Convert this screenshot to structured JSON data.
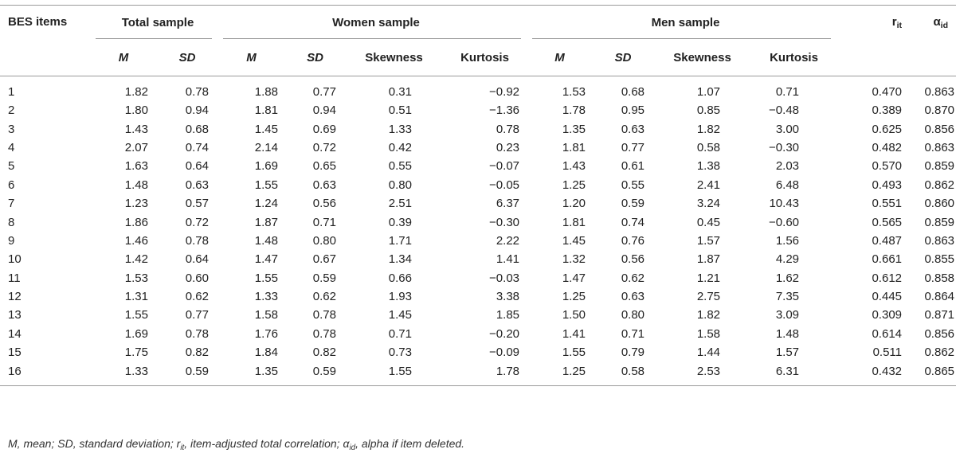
{
  "header": {
    "items_label": "BES items",
    "groups": {
      "total": "Total sample",
      "women": "Women sample",
      "men": "Men sample"
    },
    "rit_main": "r",
    "rit_sub": "it",
    "alpha_main": "α",
    "alpha_sub": "id",
    "sub": {
      "m": "M",
      "sd": "SD",
      "skewness": "Skewness",
      "kurtosis": "Kurtosis"
    }
  },
  "rows": [
    [
      "1",
      "1.82",
      "0.78",
      "1.88",
      "0.77",
      "0.31",
      "−0.92",
      "1.53",
      "0.68",
      "1.07",
      "0.71",
      "0.470",
      "0.863"
    ],
    [
      "2",
      "1.80",
      "0.94",
      "1.81",
      "0.94",
      "0.51",
      "−1.36",
      "1.78",
      "0.95",
      "0.85",
      "−0.48",
      "0.389",
      "0.870"
    ],
    [
      "3",
      "1.43",
      "0.68",
      "1.45",
      "0.69",
      "1.33",
      "0.78",
      "1.35",
      "0.63",
      "1.82",
      "3.00",
      "0.625",
      "0.856"
    ],
    [
      "4",
      "2.07",
      "0.74",
      "2.14",
      "0.72",
      "0.42",
      "0.23",
      "1.81",
      "0.77",
      "0.58",
      "−0.30",
      "0.482",
      "0.863"
    ],
    [
      "5",
      "1.63",
      "0.64",
      "1.69",
      "0.65",
      "0.55",
      "−0.07",
      "1.43",
      "0.61",
      "1.38",
      "2.03",
      "0.570",
      "0.859"
    ],
    [
      "6",
      "1.48",
      "0.63",
      "1.55",
      "0.63",
      "0.80",
      "−0.05",
      "1.25",
      "0.55",
      "2.41",
      "6.48",
      "0.493",
      "0.862"
    ],
    [
      "7",
      "1.23",
      "0.57",
      "1.24",
      "0.56",
      "2.51",
      "6.37",
      "1.20",
      "0.59",
      "3.24",
      "10.43",
      "0.551",
      "0.860"
    ],
    [
      "8",
      "1.86",
      "0.72",
      "1.87",
      "0.71",
      "0.39",
      "−0.30",
      "1.81",
      "0.74",
      "0.45",
      "−0.60",
      "0.565",
      "0.859"
    ],
    [
      "9",
      "1.46",
      "0.78",
      "1.48",
      "0.80",
      "1.71",
      "2.22",
      "1.45",
      "0.76",
      "1.57",
      "1.56",
      "0.487",
      "0.863"
    ],
    [
      "10",
      "1.42",
      "0.64",
      "1.47",
      "0.67",
      "1.34",
      "1.41",
      "1.32",
      "0.56",
      "1.87",
      "4.29",
      "0.661",
      "0.855"
    ],
    [
      "11",
      "1.53",
      "0.60",
      "1.55",
      "0.59",
      "0.66",
      "−0.03",
      "1.47",
      "0.62",
      "1.21",
      "1.62",
      "0.612",
      "0.858"
    ],
    [
      "12",
      "1.31",
      "0.62",
      "1.33",
      "0.62",
      "1.93",
      "3.38",
      "1.25",
      "0.63",
      "2.75",
      "7.35",
      "0.445",
      "0.864"
    ],
    [
      "13",
      "1.55",
      "0.77",
      "1.58",
      "0.78",
      "1.45",
      "1.85",
      "1.50",
      "0.80",
      "1.82",
      "3.09",
      "0.309",
      "0.871"
    ],
    [
      "14",
      "1.69",
      "0.78",
      "1.76",
      "0.78",
      "0.71",
      "−0.20",
      "1.41",
      "0.71",
      "1.58",
      "1.48",
      "0.614",
      "0.856"
    ],
    [
      "15",
      "1.75",
      "0.82",
      "1.84",
      "0.82",
      "0.73",
      "−0.09",
      "1.55",
      "0.79",
      "1.44",
      "1.57",
      "0.511",
      "0.862"
    ],
    [
      "16",
      "1.33",
      "0.59",
      "1.35",
      "0.59",
      "1.55",
      "1.78",
      "1.25",
      "0.58",
      "2.53",
      "6.31",
      "0.432",
      "0.865"
    ]
  ],
  "footnote": {
    "p1": "M, mean; SD, standard deviation; r",
    "p1_sub": "it",
    "p2": ", item-adjusted total correlation; α",
    "p2_sub": "id",
    "p3": ", alpha if item deleted."
  }
}
